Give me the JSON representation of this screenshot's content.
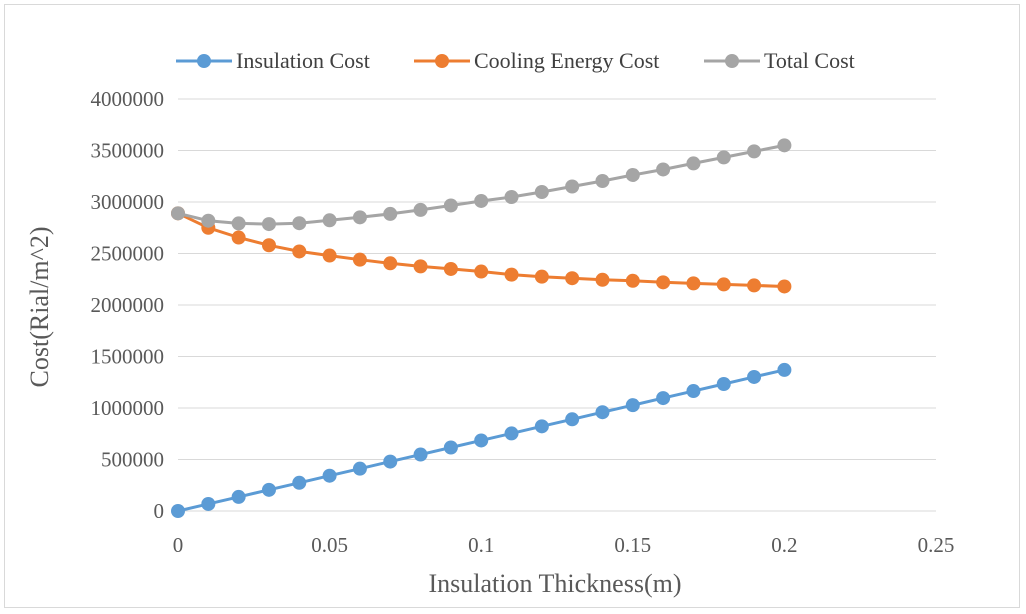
{
  "chart_data": {
    "type": "line",
    "xlabel": "Insulation Thickness(m)",
    "ylabel": "Cost(Rial/m^2)",
    "xlim": [
      0,
      0.25
    ],
    "ylim": [
      0,
      4000000
    ],
    "x_ticks": [
      "0",
      "0.05",
      "0.1",
      "0.15",
      "0.2",
      "0.25"
    ],
    "y_ticks": [
      "0",
      "500000",
      "1000000",
      "1500000",
      "2000000",
      "2500000",
      "3000000",
      "3500000",
      "4000000"
    ],
    "grid": "horizontal",
    "legend_position": "top",
    "x": [
      0,
      0.01,
      0.02,
      0.03,
      0.04,
      0.05,
      0.06,
      0.07,
      0.08,
      0.09,
      0.1,
      0.11,
      0.12,
      0.13,
      0.14,
      0.15,
      0.16,
      0.17,
      0.18,
      0.19,
      0.2
    ],
    "series": [
      {
        "name": "Insulation Cost",
        "color": "#5b9bd5",
        "values": [
          0,
          68500,
          137000,
          205500,
          274000,
          342500,
          411000,
          479500,
          548000,
          616500,
          685000,
          753500,
          822000,
          890500,
          959000,
          1027500,
          1096000,
          1164500,
          1233000,
          1301500,
          1370000
        ]
      },
      {
        "name": "Cooling Energy Cost",
        "color": "#ed7d31",
        "values": [
          2890000,
          2750000,
          2655000,
          2580000,
          2520000,
          2480000,
          2440000,
          2405000,
          2375000,
          2350000,
          2325000,
          2295000,
          2275000,
          2260000,
          2245000,
          2235000,
          2220000,
          2210000,
          2200000,
          2190000,
          2180000
        ]
      },
      {
        "name": "Total Cost",
        "color": "#a5a5a5",
        "values": [
          2890000,
          2818500,
          2792000,
          2785500,
          2794000,
          2822500,
          2851000,
          2884500,
          2923000,
          2966500,
          3010000,
          3048500,
          3097000,
          3150500,
          3204000,
          3262500,
          3316000,
          3374500,
          3433000,
          3491500,
          3550000
        ]
      }
    ]
  }
}
